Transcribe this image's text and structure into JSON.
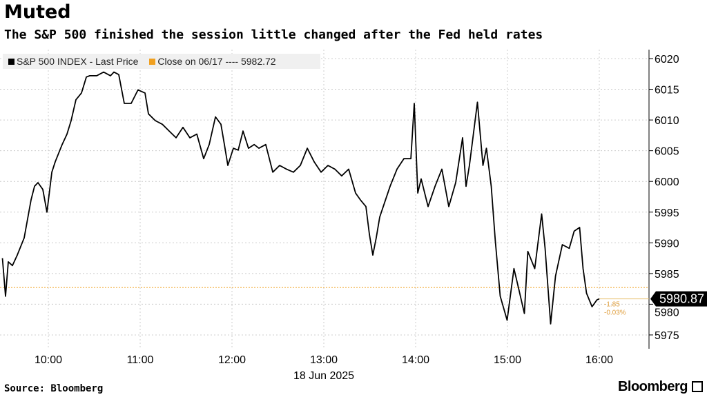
{
  "header": {
    "title": "Muted",
    "subtitle": "The S&P 500 finished the session little changed after the Fed held rates"
  },
  "footer": {
    "source": "Source: Bloomberg",
    "logo": "Bloomberg"
  },
  "chart_data": {
    "type": "line",
    "title": "Muted",
    "xlabel": "18 Jun 2025",
    "ylabel": "",
    "x_ticks": [
      10,
      11,
      12,
      13,
      14,
      15,
      16
    ],
    "x_tick_labels": [
      "10:00",
      "11:00",
      "12:00",
      "13:00",
      "14:00",
      "15:00",
      "16:00"
    ],
    "y_ticks": [
      5975,
      5980,
      5985,
      5990,
      5995,
      6000,
      6005,
      6010,
      6015,
      6020
    ],
    "xlim": [
      9.5,
      16.55
    ],
    "ylim": [
      5973,
      6020.5
    ],
    "grid": true,
    "legend_position": "top-left",
    "legend": [
      "S&P 500 INDEX - Last Price",
      "Close on 06/17 ---- 5982.72"
    ],
    "reference_line": {
      "name": "Close on 06/17",
      "value": 5982.72,
      "color": "#f0a020"
    },
    "last_value_label": "5980.87",
    "change_annotation": [
      "-1.85",
      "-0.03%"
    ],
    "series": [
      {
        "name": "S&P 500 INDEX - Last Price",
        "color": "#000000",
        "points": [
          [
            9.5,
            5987.5
          ],
          [
            9.534,
            5981.3
          ],
          [
            9.564,
            5986.9
          ],
          [
            9.609,
            5986.3
          ],
          [
            9.662,
            5988.0
          ],
          [
            9.737,
            5990.8
          ],
          [
            9.812,
            5997.0
          ],
          [
            9.85,
            5999.2
          ],
          [
            9.887,
            5999.8
          ],
          [
            9.94,
            5998.7
          ],
          [
            9.985,
            5995.0
          ],
          [
            10.038,
            6001.5
          ],
          [
            10.075,
            6003.2
          ],
          [
            10.15,
            6006.0
          ],
          [
            10.203,
            6007.7
          ],
          [
            10.248,
            6009.9
          ],
          [
            10.301,
            6013.3
          ],
          [
            10.361,
            6014.4
          ],
          [
            10.414,
            6017.0
          ],
          [
            10.451,
            6017.2
          ],
          [
            10.526,
            6017.2
          ],
          [
            10.602,
            6017.8
          ],
          [
            10.677,
            6017.2
          ],
          [
            10.714,
            6017.8
          ],
          [
            10.767,
            6017.4
          ],
          [
            10.827,
            6012.7
          ],
          [
            10.902,
            6012.7
          ],
          [
            10.977,
            6014.9
          ],
          [
            11.053,
            6014.4
          ],
          [
            11.09,
            6011.0
          ],
          [
            11.165,
            6009.9
          ],
          [
            11.241,
            6009.3
          ],
          [
            11.316,
            6008.2
          ],
          [
            11.391,
            6007.1
          ],
          [
            11.466,
            6008.8
          ],
          [
            11.541,
            6007.1
          ],
          [
            11.617,
            6007.7
          ],
          [
            11.692,
            6003.7
          ],
          [
            11.752,
            6006.0
          ],
          [
            11.82,
            6010.5
          ],
          [
            11.88,
            6009.3
          ],
          [
            11.917,
            6006.0
          ],
          [
            11.955,
            6002.6
          ],
          [
            12.015,
            6005.4
          ],
          [
            12.068,
            6005.1
          ],
          [
            12.12,
            6008.2
          ],
          [
            12.18,
            6005.4
          ],
          [
            12.241,
            6006.0
          ],
          [
            12.293,
            6005.4
          ],
          [
            12.368,
            6006.0
          ],
          [
            12.444,
            6001.5
          ],
          [
            12.519,
            6002.6
          ],
          [
            12.594,
            6002.0
          ],
          [
            12.669,
            6001.5
          ],
          [
            12.744,
            6002.6
          ],
          [
            12.82,
            6005.4
          ],
          [
            12.895,
            6003.2
          ],
          [
            12.97,
            6001.5
          ],
          [
            13.045,
            6002.6
          ],
          [
            13.12,
            6002.0
          ],
          [
            13.195,
            6000.9
          ],
          [
            13.271,
            6002.0
          ],
          [
            13.346,
            5998.1
          ],
          [
            13.398,
            5997.0
          ],
          [
            13.459,
            5995.9
          ],
          [
            13.496,
            5991.4
          ],
          [
            13.534,
            5988.0
          ],
          [
            13.571,
            5990.8
          ],
          [
            13.609,
            5994.2
          ],
          [
            13.647,
            5995.9
          ],
          [
            13.722,
            5999.2
          ],
          [
            13.797,
            6002.0
          ],
          [
            13.872,
            6003.7
          ],
          [
            13.948,
            6003.7
          ],
          [
            13.985,
            6012.7
          ],
          [
            14.023,
            5998.1
          ],
          [
            14.06,
            6000.4
          ],
          [
            14.135,
            5995.9
          ],
          [
            14.211,
            5999.2
          ],
          [
            14.286,
            6002.0
          ],
          [
            14.361,
            5995.9
          ],
          [
            14.436,
            5999.8
          ],
          [
            14.511,
            6007.1
          ],
          [
            14.549,
            5999.2
          ],
          [
            14.586,
            6002.6
          ],
          [
            14.673,
            6012.9
          ],
          [
            14.733,
            6002.6
          ],
          [
            14.771,
            6005.4
          ],
          [
            14.823,
            5999.2
          ],
          [
            14.868,
            5990.3
          ],
          [
            14.921,
            5981.3
          ],
          [
            14.996,
            5977.4
          ],
          [
            15.071,
            5985.8
          ],
          [
            15.124,
            5982.4
          ],
          [
            15.184,
            5978.5
          ],
          [
            15.222,
            5988.6
          ],
          [
            15.297,
            5985.8
          ],
          [
            15.372,
            5994.7
          ],
          [
            15.41,
            5989.1
          ],
          [
            15.47,
            5976.8
          ],
          [
            15.523,
            5984.6
          ],
          [
            15.598,
            5989.7
          ],
          [
            15.673,
            5989.1
          ],
          [
            15.726,
            5991.9
          ],
          [
            15.786,
            5992.5
          ],
          [
            15.823,
            5985.8
          ],
          [
            15.861,
            5981.8
          ],
          [
            15.921,
            5979.6
          ],
          [
            15.974,
            5980.7
          ],
          [
            16.0,
            5980.87
          ]
        ]
      }
    ]
  }
}
